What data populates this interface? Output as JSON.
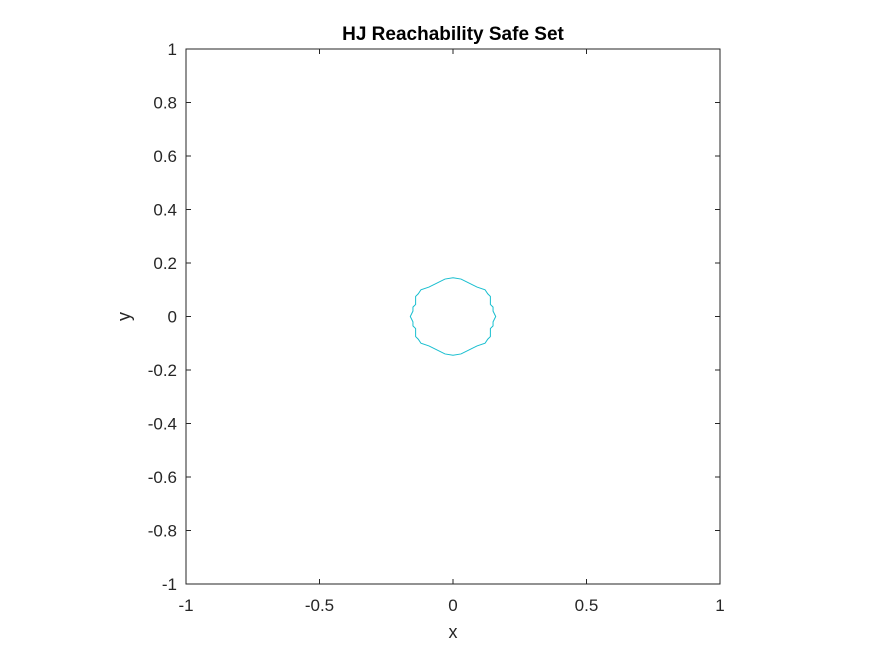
{
  "chart_data": {
    "type": "line",
    "title": "HJ Reachability Safe Set",
    "xlabel": "x",
    "ylabel": "y",
    "xlim": [
      -1,
      1
    ],
    "ylim": [
      -1,
      1
    ],
    "grid": false,
    "box": true,
    "xticks": [
      -1,
      -0.5,
      0,
      0.5,
      1
    ],
    "yticks": [
      -1,
      -0.8,
      -0.6,
      -0.4,
      -0.2,
      0,
      0.2,
      0.4,
      0.6,
      0.8,
      1
    ],
    "xtick_labels": [
      "-1",
      "-0.5",
      "0",
      "0.5",
      "1"
    ],
    "ytick_labels": [
      "-1",
      "-0.8",
      "-0.6",
      "-0.4",
      "-0.2",
      "0",
      "0.2",
      "0.4",
      "0.6",
      "0.8",
      "1"
    ],
    "series": [
      {
        "color": "#17becf",
        "closed": true,
        "points": [
          [
            0.0,
            0.145
          ],
          [
            0.03,
            0.14
          ],
          [
            0.06,
            0.125
          ],
          [
            0.09,
            0.11
          ],
          [
            0.12,
            0.1
          ],
          [
            0.13,
            0.085
          ],
          [
            0.14,
            0.075
          ],
          [
            0.14,
            0.045
          ],
          [
            0.15,
            0.035
          ],
          [
            0.15,
            0.02
          ],
          [
            0.16,
            0.0
          ],
          [
            0.15,
            -0.02
          ],
          [
            0.15,
            -0.035
          ],
          [
            0.14,
            -0.045
          ],
          [
            0.14,
            -0.075
          ],
          [
            0.13,
            -0.085
          ],
          [
            0.12,
            -0.1
          ],
          [
            0.09,
            -0.11
          ],
          [
            0.06,
            -0.125
          ],
          [
            0.03,
            -0.14
          ],
          [
            0.0,
            -0.145
          ],
          [
            -0.03,
            -0.14
          ],
          [
            -0.06,
            -0.125
          ],
          [
            -0.09,
            -0.11
          ],
          [
            -0.12,
            -0.1
          ],
          [
            -0.13,
            -0.085
          ],
          [
            -0.14,
            -0.075
          ],
          [
            -0.14,
            -0.045
          ],
          [
            -0.15,
            -0.035
          ],
          [
            -0.15,
            -0.02
          ],
          [
            -0.16,
            0.0
          ],
          [
            -0.15,
            0.02
          ],
          [
            -0.15,
            0.035
          ],
          [
            -0.14,
            0.045
          ],
          [
            -0.14,
            0.075
          ],
          [
            -0.13,
            0.085
          ],
          [
            -0.12,
            0.1
          ],
          [
            -0.09,
            0.11
          ],
          [
            -0.06,
            0.125
          ],
          [
            -0.03,
            0.14
          ]
        ]
      }
    ]
  }
}
